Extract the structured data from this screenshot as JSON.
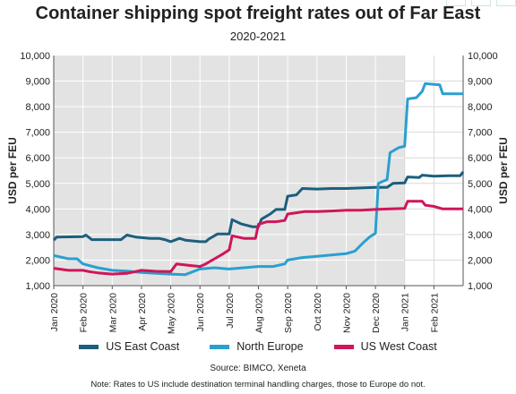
{
  "chart_data": {
    "type": "line",
    "title": "Container shipping spot freight rates out of Far East",
    "subtitle": "2020-2021",
    "ylabel": "USD per FEU",
    "ylabel_right": "USD per FEU",
    "ylim": [
      1000,
      10000
    ],
    "yticks": [
      "1,000",
      "2,000",
      "3,000",
      "4,000",
      "5,000",
      "6,000",
      "7,000",
      "8,000",
      "9,000",
      "10,000"
    ],
    "xlim": [
      0,
      14.0
    ],
    "xticks": [
      "Jan 2020",
      "Feb 2020",
      "Mar 2020",
      "Apr 2020",
      "May 2020",
      "Jun 2020",
      "Jul 2020",
      "Aug 2020",
      "Sep 2020",
      "Oct 2020",
      "Nov 2020",
      "Dec 2020",
      "Jan 2021",
      "Feb 2021"
    ],
    "shaded_range": [
      0,
      12
    ],
    "grid": true,
    "legend_position": "bottom",
    "source": "Source: BIMCO, Xeneta",
    "note": "Note: Rates to US include destination terminal handling charges, those to Europe do not.",
    "series": [
      {
        "name": "US East Coast",
        "color": "#1c5f7c",
        "points": [
          [
            0,
            2780
          ],
          [
            0.1,
            2900
          ],
          [
            1.0,
            2920
          ],
          [
            1.1,
            2980
          ],
          [
            1.3,
            2800
          ],
          [
            2.0,
            2800
          ],
          [
            2.3,
            2800
          ],
          [
            2.5,
            2980
          ],
          [
            2.8,
            2900
          ],
          [
            3.3,
            2850
          ],
          [
            3.6,
            2850
          ],
          [
            3.8,
            2800
          ],
          [
            4.0,
            2720
          ],
          [
            4.3,
            2850
          ],
          [
            4.5,
            2780
          ],
          [
            5.0,
            2720
          ],
          [
            5.2,
            2720
          ],
          [
            5.3,
            2820
          ],
          [
            5.6,
            3020
          ],
          [
            6.0,
            3020
          ],
          [
            6.1,
            3580
          ],
          [
            6.4,
            3420
          ],
          [
            6.8,
            3300
          ],
          [
            7.0,
            3300
          ],
          [
            7.1,
            3600
          ],
          [
            7.4,
            3800
          ],
          [
            7.6,
            3980
          ],
          [
            7.9,
            3980
          ],
          [
            8.0,
            4500
          ],
          [
            8.3,
            4550
          ],
          [
            8.5,
            4800
          ],
          [
            9.0,
            4780
          ],
          [
            9.5,
            4800
          ],
          [
            10.0,
            4800
          ],
          [
            10.5,
            4820
          ],
          [
            11.0,
            4840
          ],
          [
            11.4,
            4840
          ],
          [
            11.6,
            5000
          ],
          [
            12.0,
            5020
          ],
          [
            12.1,
            5250
          ],
          [
            12.5,
            5230
          ],
          [
            12.6,
            5320
          ],
          [
            13.0,
            5280
          ],
          [
            13.5,
            5300
          ],
          [
            13.9,
            5300
          ],
          [
            14.0,
            5450
          ]
        ]
      },
      {
        "name": "North Europe",
        "color": "#2a9fd0",
        "points": [
          [
            0,
            2180
          ],
          [
            0.5,
            2050
          ],
          [
            0.8,
            2050
          ],
          [
            1.0,
            1850
          ],
          [
            1.5,
            1700
          ],
          [
            2.0,
            1600
          ],
          [
            2.5,
            1570
          ],
          [
            3.0,
            1520
          ],
          [
            3.5,
            1480
          ],
          [
            4.0,
            1450
          ],
          [
            4.5,
            1430
          ],
          [
            5.0,
            1650
          ],
          [
            5.5,
            1700
          ],
          [
            6.0,
            1650
          ],
          [
            6.5,
            1700
          ],
          [
            7.0,
            1750
          ],
          [
            7.5,
            1750
          ],
          [
            7.9,
            1850
          ],
          [
            8.0,
            2000
          ],
          [
            8.5,
            2100
          ],
          [
            9.0,
            2150
          ],
          [
            9.5,
            2200
          ],
          [
            10.0,
            2250
          ],
          [
            10.3,
            2350
          ],
          [
            10.6,
            2700
          ],
          [
            10.8,
            2900
          ],
          [
            11.0,
            3050
          ],
          [
            11.1,
            5000
          ],
          [
            11.4,
            5150
          ],
          [
            11.5,
            6200
          ],
          [
            11.8,
            6400
          ],
          [
            12.0,
            6450
          ],
          [
            12.1,
            8300
          ],
          [
            12.4,
            8350
          ],
          [
            12.6,
            8600
          ],
          [
            12.7,
            8900
          ],
          [
            13.2,
            8850
          ],
          [
            13.3,
            8500
          ],
          [
            14.0,
            8500
          ]
        ]
      },
      {
        "name": "US West Coast",
        "color": "#d0155a",
        "points": [
          [
            0,
            1680
          ],
          [
            0.5,
            1600
          ],
          [
            1.0,
            1600
          ],
          [
            1.2,
            1550
          ],
          [
            1.5,
            1500
          ],
          [
            2.0,
            1450
          ],
          [
            2.5,
            1480
          ],
          [
            3.0,
            1600
          ],
          [
            3.5,
            1560
          ],
          [
            4.0,
            1550
          ],
          [
            4.2,
            1850
          ],
          [
            4.6,
            1800
          ],
          [
            5.0,
            1750
          ],
          [
            5.2,
            1850
          ],
          [
            5.5,
            2050
          ],
          [
            5.8,
            2250
          ],
          [
            6.0,
            2400
          ],
          [
            6.1,
            2950
          ],
          [
            6.5,
            2850
          ],
          [
            6.9,
            2850
          ],
          [
            7.0,
            3400
          ],
          [
            7.3,
            3500
          ],
          [
            7.6,
            3500
          ],
          [
            7.9,
            3550
          ],
          [
            8.0,
            3800
          ],
          [
            8.3,
            3850
          ],
          [
            8.6,
            3900
          ],
          [
            9.0,
            3900
          ],
          [
            9.5,
            3920
          ],
          [
            10.0,
            3950
          ],
          [
            10.5,
            3950
          ],
          [
            11.0,
            3980
          ],
          [
            11.5,
            4000
          ],
          [
            12.0,
            4020
          ],
          [
            12.1,
            4300
          ],
          [
            12.6,
            4300
          ],
          [
            12.7,
            4150
          ],
          [
            13.0,
            4100
          ],
          [
            13.3,
            4000
          ],
          [
            14.0,
            4000
          ]
        ]
      }
    ]
  }
}
